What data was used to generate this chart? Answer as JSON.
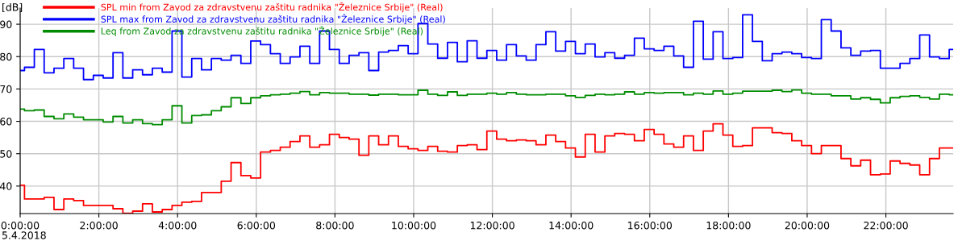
{
  "chart_data": {
    "type": "step",
    "ylabel": "[dB]",
    "xlim": [
      0,
      23.71
    ],
    "ylim": [
      31.5,
      95
    ],
    "xticks": [
      {
        "value": 0,
        "label": "0:00:00"
      },
      {
        "value": 2,
        "label": "2:00:00"
      },
      {
        "value": 4,
        "label": "4:00:00"
      },
      {
        "value": 6,
        "label": "6:00:00"
      },
      {
        "value": 8,
        "label": "8:00:00"
      },
      {
        "value": 10,
        "label": "10:00:00"
      },
      {
        "value": 12,
        "label": "12:00:00"
      },
      {
        "value": 14,
        "label": "14:00:00"
      },
      {
        "value": 16,
        "label": "16:00:00"
      },
      {
        "value": 18,
        "label": "18:00:00"
      },
      {
        "value": 20,
        "label": "20:00:00"
      },
      {
        "value": 22,
        "label": "22:00:00"
      }
    ],
    "yticks": [
      40,
      50,
      60,
      70,
      80,
      90
    ],
    "grid": true,
    "legend": "top left",
    "annotations": [
      "5.4.2018"
    ],
    "x": [
      0,
      0.11,
      0.36,
      0.61,
      0.86,
      1.11,
      1.36,
      1.61,
      1.86,
      2.11,
      2.36,
      2.61,
      2.86,
      3.11,
      3.36,
      3.61,
      3.86,
      4.11,
      4.36,
      4.61,
      4.86,
      5.11,
      5.36,
      5.61,
      5.86,
      6.11,
      6.36,
      6.61,
      6.86,
      7.11,
      7.36,
      7.61,
      7.86,
      8.11,
      8.36,
      8.61,
      8.86,
      9.11,
      9.36,
      9.61,
      9.86,
      10.11,
      10.36,
      10.61,
      10.86,
      11.11,
      11.36,
      11.61,
      11.86,
      12.11,
      12.36,
      12.61,
      12.86,
      13.11,
      13.36,
      13.61,
      13.86,
      14.11,
      14.36,
      14.61,
      14.86,
      15.11,
      15.36,
      15.61,
      15.86,
      16.11,
      16.36,
      16.61,
      16.86,
      17.11,
      17.36,
      17.61,
      17.86,
      18.11,
      18.36,
      18.61,
      18.86,
      19.11,
      19.36,
      19.61,
      19.86,
      20.11,
      20.36,
      20.61,
      20.86,
      21.11,
      21.36,
      21.61,
      21.86,
      22.11,
      22.36,
      22.61,
      22.86,
      23.11,
      23.36,
      23.61
    ],
    "series": [
      {
        "name": "SPL min from Zavod za zdravstvenu zaštitu radnika \"Železnice Srbije\" (Real)",
        "color": "#ff0000",
        "values": [
          40.25,
          36.0,
          36.0,
          36.5,
          32.75,
          36.0,
          35.5,
          34.0,
          34.0,
          34.0,
          33.0,
          31.6,
          32.25,
          34.5,
          32.0,
          32.75,
          34.0,
          35.0,
          35.25,
          38.0,
          38.0,
          41.5,
          47.25,
          43.25,
          42.5,
          50.5,
          51.0,
          52.0,
          53.75,
          55.5,
          52.0,
          52.75,
          56.0,
          55.0,
          54.5,
          49.5,
          55.5,
          52.75,
          55.5,
          52.25,
          51.5,
          51.0,
          52.25,
          50.75,
          50.5,
          52.5,
          52.75,
          51.25,
          57.0,
          54.5,
          54.0,
          54.25,
          54.0,
          52.75,
          55.75,
          53.75,
          51.75,
          49.0,
          56.0,
          50.5,
          55.5,
          56.25,
          56.0,
          54.0,
          57.5,
          56.0,
          53.0,
          52.0,
          55.5,
          51.0,
          57.0,
          59.25,
          55.75,
          52.25,
          52.5,
          58.0,
          58.0,
          56.5,
          56.25,
          54.0,
          52.5,
          50.0,
          52.5,
          52.5,
          48.5,
          46.25,
          48.0,
          43.5,
          43.75,
          47.75,
          47.0,
          46.5,
          43.5,
          48.5,
          51.75,
          51.75
        ]
      },
      {
        "name": "SPL max from Zavod za zdravstvenu zaštitu radnika \"Železnice Srbije\" (Real)",
        "color": "#0000ff",
        "values": [
          75.7,
          76.7,
          82.2,
          75.0,
          76.4,
          79.4,
          76.4,
          72.9,
          74.2,
          73.4,
          81.2,
          73.4,
          75.9,
          74.4,
          76.4,
          75.2,
          87.9,
          73.7,
          79.4,
          75.9,
          79.4,
          78.9,
          80.4,
          77.9,
          84.8,
          83.7,
          80.9,
          77.9,
          79.9,
          83.2,
          77.9,
          87.9,
          82.2,
          77.9,
          80.4,
          81.2,
          75.7,
          81.4,
          81.9,
          83.4,
          80.9,
          90.2,
          83.9,
          79.5,
          84.4,
          78.4,
          84.9,
          79.5,
          81.9,
          78.9,
          83.7,
          80.2,
          78.9,
          83.7,
          87.7,
          81.7,
          84.7,
          80.9,
          83.9,
          79.9,
          81.2,
          79.5,
          80.4,
          85.7,
          82.4,
          81.9,
          83.2,
          80.2,
          76.7,
          90.9,
          79.2,
          87.7,
          79.4,
          79.7,
          92.9,
          84.7,
          78.7,
          80.9,
          81.4,
          80.9,
          79.7,
          79.4,
          91.4,
          87.9,
          82.7,
          80.4,
          81.7,
          81.9,
          76.4,
          76.4,
          77.9,
          79.4,
          86.7,
          79.9,
          79.4,
          82.2
        ]
      },
      {
        "name": "Leq from Zavod za zdravstvenu zaštitu radnika \"Železnice Srbije\" (Real)",
        "color": "#008c00",
        "values": [
          63.8,
          63.3,
          63.5,
          61.5,
          60.8,
          62.3,
          61.3,
          60.5,
          60.5,
          59.8,
          61.5,
          59.5,
          60.5,
          59.3,
          59.0,
          60.5,
          64.8,
          59.5,
          61.8,
          62.0,
          63.3,
          64.5,
          67.3,
          65.5,
          67.3,
          67.9,
          68.2,
          68.4,
          68.7,
          69.2,
          68.2,
          68.9,
          68.7,
          68.7,
          68.4,
          68.4,
          68.1,
          68.4,
          68.4,
          68.2,
          68.2,
          69.6,
          68.4,
          68.0,
          69.1,
          68.0,
          68.4,
          68.4,
          68.7,
          68.4,
          68.9,
          68.4,
          68.2,
          68.2,
          68.4,
          68.4,
          67.9,
          67.4,
          68.0,
          68.4,
          68.2,
          68.4,
          69.1,
          68.4,
          68.9,
          68.7,
          68.9,
          68.9,
          68.2,
          68.7,
          68.4,
          69.4,
          68.4,
          68.7,
          69.3,
          69.3,
          69.3,
          69.6,
          69.2,
          69.7,
          68.7,
          68.4,
          68.4,
          67.9,
          67.9,
          66.9,
          67.3,
          66.8,
          65.7,
          67.3,
          67.7,
          67.9,
          67.4,
          66.9,
          68.4,
          68.2
        ]
      }
    ]
  }
}
